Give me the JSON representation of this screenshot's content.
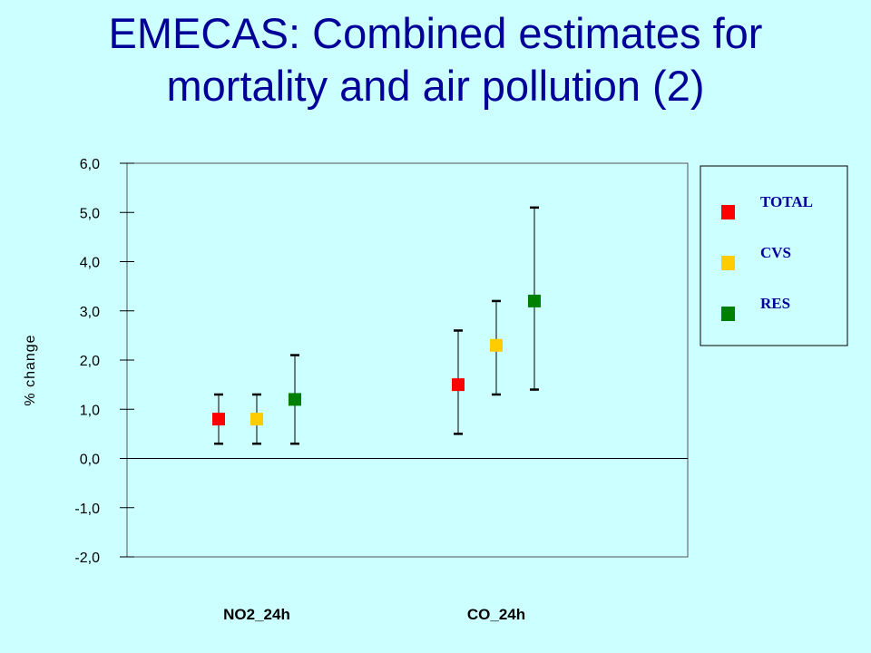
{
  "title": {
    "line1": "EMECAS: Combined estimates for",
    "line2": "mortality and air pollution (2)"
  },
  "chart_data": {
    "type": "scatter",
    "ylabel": "% change",
    "ylim": [
      -2.0,
      6.0
    ],
    "yticks": [
      "6,0",
      "5,0",
      "4,0",
      "3,0",
      "2,0",
      "1,0",
      "0,0",
      "-1,0",
      "-2,0"
    ],
    "ytick_values": [
      6,
      5,
      4,
      3,
      2,
      1,
      0,
      -1,
      -2
    ],
    "categories": [
      "NO2_24h",
      "CO_24h"
    ],
    "legend_position": "top-right",
    "series": [
      {
        "name": "TOTAL",
        "color": "#ff0000",
        "values": [
          0.8,
          1.5
        ],
        "lower": [
          0.3,
          0.5
        ],
        "upper": [
          1.3,
          2.6
        ]
      },
      {
        "name": "CVS",
        "color": "#ffcc00",
        "values": [
          0.8,
          2.3
        ],
        "lower": [
          0.3,
          1.3
        ],
        "upper": [
          1.3,
          3.2
        ]
      },
      {
        "name": "RES",
        "color": "#008000",
        "values": [
          1.2,
          3.2
        ],
        "lower": [
          0.3,
          1.4
        ],
        "upper": [
          2.1,
          5.1
        ]
      }
    ]
  }
}
